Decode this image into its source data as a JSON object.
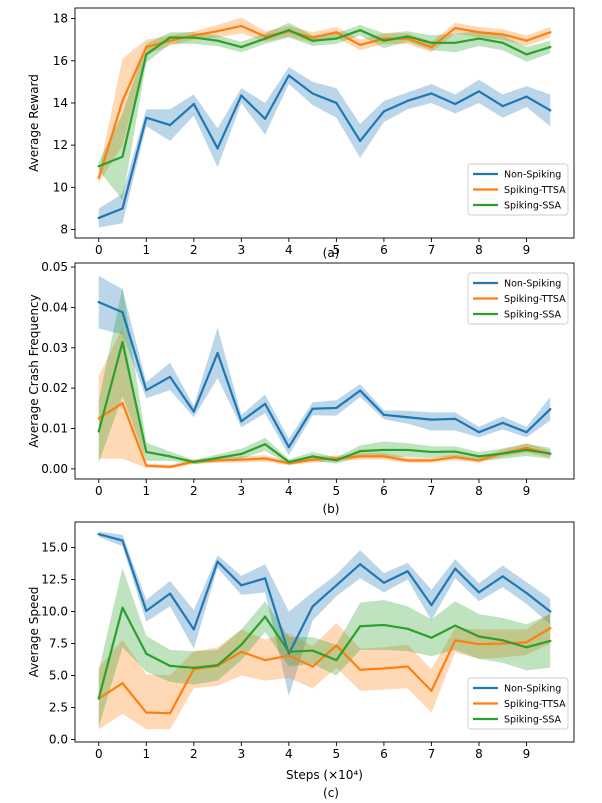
{
  "colors": {
    "Non-Spiking": "#1f77b4",
    "Spiking-TTSA": "#ff7f0e",
    "Spiking-SSA": "#2ca02c"
  },
  "chart_data": [
    {
      "type": "line",
      "panel_label": "(a)",
      "title": "",
      "xlabel": "",
      "ylabel": "Average Reward",
      "x": [
        0,
        0.5,
        1,
        1.5,
        2,
        2.5,
        3,
        3.5,
        4,
        4.5,
        5,
        5.5,
        6,
        6.5,
        7,
        7.5,
        8,
        8.5,
        9,
        9.5
      ],
      "xlim": [
        -0.5,
        10
      ],
      "ylim": [
        7.6,
        18.5
      ],
      "xticks": [
        "0",
        "1",
        "2",
        "3",
        "4",
        "5",
        "6",
        "7",
        "8",
        "9"
      ],
      "yticks": [
        "8",
        "10",
        "12",
        "14",
        "16",
        "18"
      ],
      "legend_position": "lower-right",
      "series": [
        {
          "name": "Non-Spiking",
          "values": [
            8.55,
            9.0,
            13.3,
            12.95,
            13.95,
            11.85,
            14.35,
            13.25,
            15.3,
            14.45,
            14.0,
            12.2,
            13.6,
            14.1,
            14.45,
            13.95,
            14.55,
            13.85,
            14.3,
            13.65
          ],
          "lower": [
            8.1,
            8.3,
            12.9,
            12.2,
            13.4,
            10.95,
            14.0,
            12.5,
            14.9,
            13.9,
            13.3,
            11.4,
            13.1,
            13.7,
            14.0,
            13.5,
            14.0,
            13.3,
            13.8,
            12.9
          ],
          "upper": [
            9.0,
            9.7,
            13.7,
            13.7,
            14.4,
            12.8,
            14.7,
            14.0,
            15.7,
            15.0,
            14.7,
            13.0,
            14.1,
            14.5,
            14.9,
            14.4,
            15.1,
            14.4,
            14.8,
            14.4
          ]
        },
        {
          "name": "Spiking-TTSA",
          "values": [
            10.45,
            14.1,
            16.65,
            16.95,
            17.2,
            17.4,
            17.65,
            17.15,
            17.4,
            17.1,
            17.35,
            16.75,
            17.05,
            17.05,
            16.65,
            17.55,
            17.35,
            17.25,
            16.95,
            17.35
          ],
          "lower": [
            10.2,
            12.0,
            16.3,
            16.7,
            17.0,
            17.1,
            17.3,
            16.9,
            17.15,
            16.85,
            17.1,
            16.5,
            16.8,
            16.8,
            16.4,
            17.3,
            17.1,
            17.0,
            16.7,
            17.1
          ],
          "upper": [
            10.7,
            16.1,
            17.0,
            17.2,
            17.4,
            17.7,
            18.05,
            17.4,
            17.65,
            17.35,
            17.6,
            17.0,
            17.3,
            17.3,
            16.9,
            17.8,
            17.6,
            17.5,
            17.2,
            17.6
          ]
        },
        {
          "name": "Spiking-SSA",
          "values": [
            11.0,
            11.45,
            16.3,
            17.1,
            17.1,
            16.95,
            16.65,
            17.05,
            17.45,
            16.95,
            17.05,
            17.45,
            16.95,
            17.15,
            16.85,
            16.85,
            17.05,
            16.85,
            16.3,
            16.65
          ],
          "lower": [
            10.8,
            9.4,
            15.9,
            16.8,
            16.8,
            16.7,
            16.4,
            16.8,
            17.1,
            16.7,
            16.8,
            17.2,
            16.6,
            16.9,
            16.5,
            16.4,
            16.7,
            16.5,
            15.95,
            16.35
          ],
          "upper": [
            11.2,
            13.5,
            16.8,
            17.35,
            17.35,
            17.2,
            16.9,
            17.3,
            17.8,
            17.2,
            17.3,
            17.7,
            17.3,
            17.4,
            17.2,
            17.3,
            17.4,
            17.2,
            16.65,
            16.95
          ]
        }
      ]
    },
    {
      "type": "line",
      "panel_label": "(b)",
      "title": "",
      "xlabel": "",
      "ylabel": "Average Crash Frequency",
      "x": [
        0,
        0.5,
        1,
        1.5,
        2,
        2.5,
        3,
        3.5,
        4,
        4.5,
        5,
        5.5,
        6,
        6.5,
        7,
        7.5,
        8,
        8.5,
        9,
        9.5
      ],
      "xlim": [
        -0.5,
        10
      ],
      "ylim": [
        -0.0025,
        0.051
      ],
      "xticks": [
        "0",
        "1",
        "2",
        "3",
        "4",
        "5",
        "6",
        "7",
        "8",
        "9"
      ],
      "yticks": [
        "0.00",
        "0.01",
        "0.02",
        "0.03",
        "0.04",
        "0.05"
      ],
      "legend_position": "top-right",
      "series": [
        {
          "name": "Non-Spiking",
          "values": [
            0.0413,
            0.0388,
            0.0195,
            0.0228,
            0.0142,
            0.0287,
            0.0118,
            0.0161,
            0.0054,
            0.0149,
            0.0151,
            0.0194,
            0.0134,
            0.0128,
            0.0122,
            0.0124,
            0.0091,
            0.0114,
            0.0091,
            0.0148
          ],
          "lower": [
            0.0348,
            0.0333,
            0.0175,
            0.0195,
            0.0128,
            0.0225,
            0.0103,
            0.0138,
            0.0034,
            0.0133,
            0.0132,
            0.0178,
            0.0123,
            0.0112,
            0.0095,
            0.0095,
            0.0078,
            0.0098,
            0.0078,
            0.012
          ],
          "upper": [
            0.0478,
            0.0445,
            0.0215,
            0.0263,
            0.0156,
            0.035,
            0.0134,
            0.0184,
            0.0074,
            0.0165,
            0.017,
            0.021,
            0.0145,
            0.0144,
            0.014,
            0.014,
            0.0104,
            0.013,
            0.0104,
            0.0178
          ]
        },
        {
          "name": "Spiking-TTSA",
          "values": [
            0.0125,
            0.0163,
            0.0008,
            0.0005,
            0.0018,
            0.0021,
            0.0023,
            0.0026,
            0.0014,
            0.0023,
            0.0026,
            0.0031,
            0.0031,
            0.0021,
            0.0021,
            0.0029,
            0.0021,
            0.0039,
            0.0052,
            0.0037
          ],
          "lower": [
            0.0025,
            0.0025,
            0.0003,
            0.0001,
            0.0012,
            0.0015,
            0.0016,
            0.0018,
            0.0009,
            0.0016,
            0.0019,
            0.0023,
            0.0023,
            0.0015,
            0.0015,
            0.0022,
            0.0015,
            0.003,
            0.004,
            0.0028
          ],
          "upper": [
            0.023,
            0.035,
            0.0013,
            0.001,
            0.0024,
            0.0027,
            0.0031,
            0.0034,
            0.0019,
            0.0031,
            0.0033,
            0.0039,
            0.004,
            0.0028,
            0.0028,
            0.0036,
            0.0027,
            0.0048,
            0.0064,
            0.0046
          ]
        },
        {
          "name": "Spiking-SSA",
          "values": [
            0.0093,
            0.0314,
            0.0042,
            0.0031,
            0.0017,
            0.0027,
            0.0037,
            0.0061,
            0.0017,
            0.0031,
            0.0021,
            0.0044,
            0.0047,
            0.0047,
            0.0042,
            0.0043,
            0.0031,
            0.0038,
            0.0047,
            0.0038
          ],
          "lower": [
            0.0015,
            0.018,
            0.002,
            0.002,
            0.0012,
            0.0018,
            0.0025,
            0.0045,
            0.001,
            0.002,
            0.0013,
            0.003,
            0.0028,
            0.003,
            0.0028,
            0.003,
            0.002,
            0.0025,
            0.0032,
            0.0025
          ],
          "upper": [
            0.017,
            0.045,
            0.0065,
            0.0043,
            0.0022,
            0.0036,
            0.005,
            0.0077,
            0.0024,
            0.0042,
            0.0029,
            0.0058,
            0.0068,
            0.0064,
            0.0056,
            0.0056,
            0.0042,
            0.0051,
            0.0062,
            0.0052
          ]
        }
      ]
    },
    {
      "type": "line",
      "panel_label": "(c)",
      "title": "",
      "xlabel": "Steps (×10⁴)",
      "ylabel": "Average Speed",
      "x": [
        0,
        0.5,
        1,
        1.5,
        2,
        2.5,
        3,
        3.5,
        4,
        4.5,
        5,
        5.5,
        6,
        6.5,
        7,
        7.5,
        8,
        8.5,
        9,
        9.5
      ],
      "xlim": [
        -0.5,
        10
      ],
      "ylim": [
        -0.2,
        17.0
      ],
      "xticks": [
        "0",
        "1",
        "2",
        "3",
        "4",
        "5",
        "6",
        "7",
        "8",
        "9"
      ],
      "yticks": [
        "0.0",
        "2.5",
        "5.0",
        "7.5",
        "10.0",
        "12.5",
        "15.0"
      ],
      "legend_position": "lower-right",
      "series": [
        {
          "name": "Non-Spiking",
          "values": [
            16.05,
            15.55,
            10.05,
            11.4,
            8.6,
            13.9,
            12.05,
            12.6,
            6.7,
            10.4,
            12.05,
            13.7,
            12.25,
            13.15,
            10.5,
            13.35,
            11.5,
            12.75,
            11.45,
            10.0
          ],
          "lower": [
            15.85,
            15.1,
            9.2,
            10.4,
            7.1,
            13.4,
            11.3,
            11.5,
            3.4,
            9.3,
            11.2,
            12.6,
            11.5,
            12.5,
            9.3,
            12.6,
            10.8,
            11.9,
            10.6,
            9.0
          ],
          "upper": [
            16.25,
            16.0,
            10.9,
            12.4,
            10.1,
            14.4,
            12.8,
            13.7,
            10.0,
            11.5,
            12.9,
            14.8,
            13.0,
            13.8,
            11.7,
            14.1,
            12.2,
            13.6,
            12.3,
            11.0
          ]
        },
        {
          "name": "Spiking-TTSA",
          "values": [
            3.2,
            4.4,
            2.1,
            2.05,
            5.5,
            5.75,
            6.85,
            6.2,
            6.55,
            5.7,
            7.35,
            5.45,
            5.55,
            5.7,
            3.8,
            7.75,
            7.45,
            7.5,
            7.6,
            8.7
          ],
          "lower": [
            0.8,
            2.0,
            0.8,
            0.8,
            4.0,
            4.2,
            5.0,
            4.6,
            4.8,
            4.0,
            5.6,
            3.8,
            3.9,
            4.0,
            2.1,
            6.8,
            6.3,
            6.4,
            6.6,
            7.5
          ],
          "upper": [
            5.6,
            7.8,
            5.1,
            5.0,
            6.9,
            7.2,
            8.6,
            7.8,
            8.3,
            7.3,
            9.1,
            7.1,
            7.2,
            7.4,
            5.5,
            8.7,
            8.6,
            8.6,
            8.6,
            9.9
          ]
        },
        {
          "name": "Spiking-SSA",
          "values": [
            3.2,
            10.3,
            6.7,
            5.75,
            5.6,
            5.8,
            7.4,
            9.6,
            6.85,
            6.95,
            6.2,
            8.85,
            8.95,
            8.65,
            7.95,
            8.9,
            8.05,
            7.75,
            7.2,
            7.7
          ],
          "lower": [
            1.0,
            7.2,
            5.3,
            4.5,
            4.3,
            4.6,
            6.2,
            8.4,
            5.7,
            5.9,
            5.0,
            7.0,
            7.0,
            6.9,
            6.5,
            7.0,
            6.3,
            6.0,
            5.4,
            5.6
          ],
          "upper": [
            5.4,
            13.4,
            8.1,
            7.0,
            6.9,
            7.0,
            8.6,
            10.8,
            8.0,
            8.0,
            7.4,
            10.7,
            10.9,
            10.4,
            9.4,
            10.8,
            9.8,
            9.5,
            9.0,
            9.8
          ]
        }
      ]
    }
  ]
}
